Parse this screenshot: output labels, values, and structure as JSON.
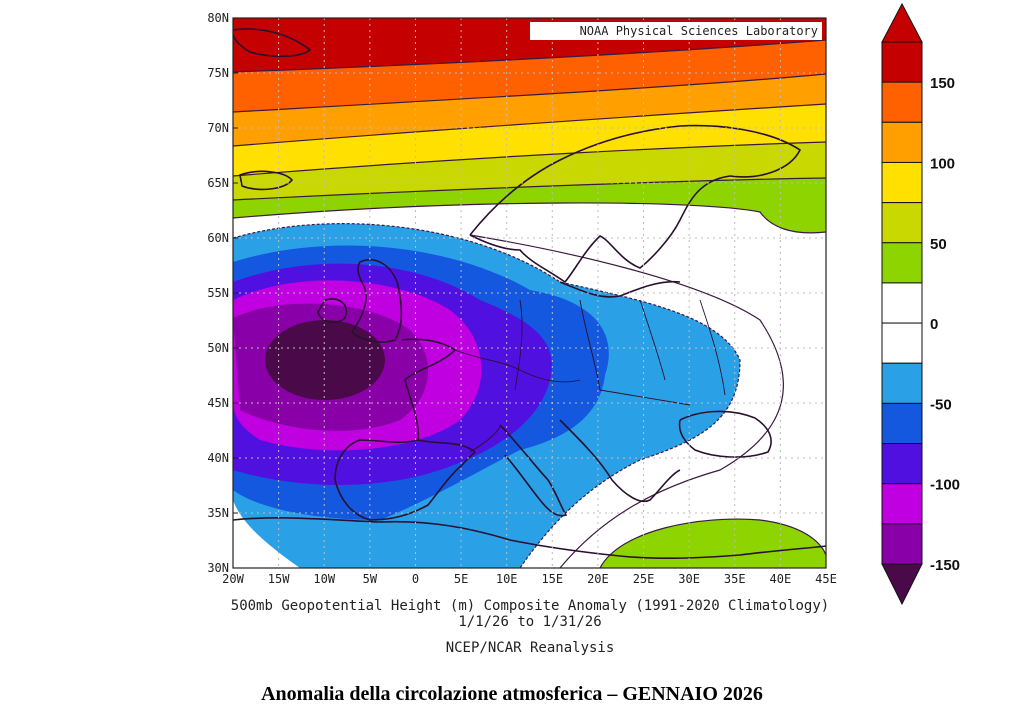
{
  "credit": "NOAA Physical Sciences Laboratory",
  "map": {
    "lat_labels": [
      "80N",
      "75N",
      "70N",
      "65N",
      "60N",
      "55N",
      "50N",
      "45N",
      "40N",
      "35N",
      "30N"
    ],
    "lon_labels": [
      "20W",
      "15W",
      "10W",
      "5W",
      "0",
      "5E",
      "10E",
      "15E",
      "20E",
      "25E",
      "30E",
      "35E",
      "40E",
      "45E"
    ]
  },
  "subtitle": {
    "line1": "500mb Geopotential Height (m) Composite Anomaly (1991-2020 Climatology)",
    "line2": "1/1/26  to 1/31/26",
    "line3": "NCEP/NCAR Reanalysis"
  },
  "colorbar": {
    "labels": [
      "150",
      "100",
      "50",
      "0",
      "-50",
      "-100",
      "-150"
    ],
    "colors_top_to_bottom": [
      "#c40000",
      "#ff6000",
      "#ffa000",
      "#ffe000",
      "#c8d800",
      "#8ed400",
      "#ffffff",
      "#ffffff",
      "#2aa0e6",
      "#1458e0",
      "#5010e0",
      "#c000e0",
      "#8a00a8"
    ],
    "bottom_arrow_color": "#4a0a4a"
  },
  "caption": "Anomalia della circolazione atmosferica – GENNAIO 2026"
}
